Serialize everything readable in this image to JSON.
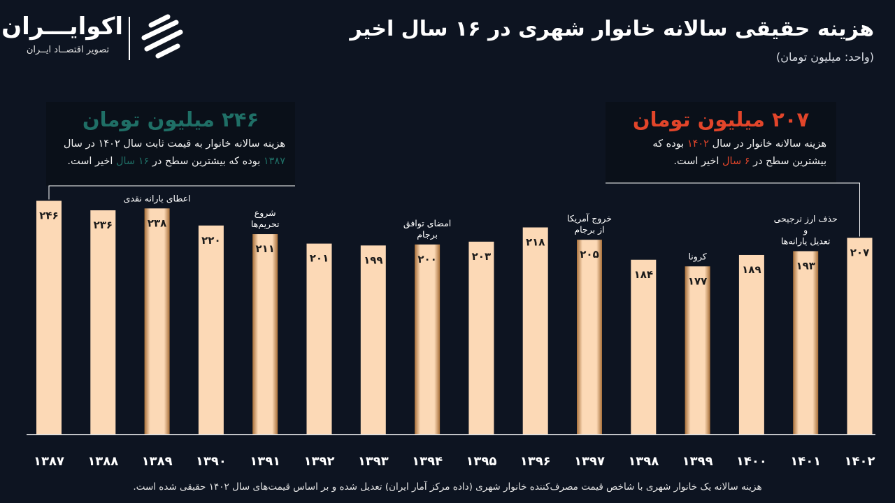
{
  "header": {
    "title": "هزینه حقیقی سالانه خانوار شهری در ۱۶ سال اخیر",
    "unit": "(واحد: میلیون تومان)"
  },
  "logo": {
    "name": "اکوایـــران",
    "tagline": "تصویر اقتصــاد ایــران"
  },
  "callouts": {
    "left": {
      "headline": "۲۴۶ میلیون تومان",
      "text_a": "هزینه سالانه خانوار به قیمت ثابت سال ۱۴۰۲ در سال ",
      "year": "۱۳۸۷",
      "text_b": " بوده که بیشترین سطح در ",
      "span": "۱۶ سال",
      "text_c": " اخیر است."
    },
    "right": {
      "headline": "۲۰۷ میلیون تومان",
      "text_a": "هزینه سالانه خانوار در سال ",
      "year": "۱۴۰۲",
      "text_b": " بوده که بیشترین سطح در ",
      "span": "۶ سال",
      "text_c": " اخیر است."
    }
  },
  "footnote": "هزینه سالانه یک خانوار شهری با شاخص قیمت مصرف‌کننده خانوار شهری (داده مرکز آمار ایران) تعدیل شده و بر اساس قیمت‌های سال ۱۴۰۲ حقیقی شده است.",
  "colors": {
    "background": "#0d1421",
    "bar": "#fcd9b6",
    "bar_highlight_edge": "#a8703a",
    "accent_teal": "#1f6f66",
    "accent_red": "#e2452a"
  },
  "chart_data": {
    "type": "bar",
    "categories": [
      "۱۳۸۷",
      "۱۳۸۸",
      "۱۳۸۹",
      "۱۳۹۰",
      "۱۳۹۱",
      "۱۳۹۲",
      "۱۳۹۳",
      "۱۳۹۴",
      "۱۳۹۵",
      "۱۳۹۶",
      "۱۳۹۷",
      "۱۳۹۸",
      "۱۳۹۹",
      "۱۴۰۰",
      "۱۴۰۱",
      "۱۴۰۲"
    ],
    "values": [
      246,
      236,
      238,
      220,
      211,
      201,
      199,
      200,
      203,
      218,
      205,
      184,
      177,
      189,
      193,
      207
    ],
    "value_labels": [
      "۲۴۶",
      "۲۳۶",
      "۲۳۸",
      "۲۲۰",
      "۲۱۱",
      "۲۰۱",
      "۱۹۹",
      "۲۰۰",
      "۲۰۳",
      "۲۱۸",
      "۲۰۵",
      "۱۸۴",
      "۱۷۷",
      "۱۸۹",
      "۱۹۳",
      "۲۰۷"
    ],
    "highlighted": [
      "۱۳۸۹",
      "۱۳۹۱",
      "۱۳۹۴",
      "۱۳۹۷",
      "۱۳۹۹",
      "۱۴۰۱"
    ],
    "annotations": [
      {
        "category": "۱۳۸۹",
        "lines": [
          "اعطای یارانه نقدی"
        ]
      },
      {
        "category": "۱۳۹۱",
        "lines": [
          "شروع",
          "تحریم‌ها"
        ]
      },
      {
        "category": "۱۳۹۴",
        "lines": [
          "امضای توافق",
          "برجام"
        ]
      },
      {
        "category": "۱۳۹۷",
        "lines": [
          "خروج آمریکا",
          "از برجام"
        ]
      },
      {
        "category": "۱۳۹۹",
        "lines": [
          "کرونا"
        ]
      },
      {
        "category": "۱۴۰۱",
        "lines": [
          "حذف ارز ترجیحی",
          "و",
          "تعدیل یارانه‌ها"
        ]
      }
    ],
    "title": "هزینه حقیقی سالانه خانوار شهری در ۱۶ سال اخیر",
    "xlabel": "",
    "ylabel": "",
    "ylim": [
      0,
      250
    ]
  }
}
